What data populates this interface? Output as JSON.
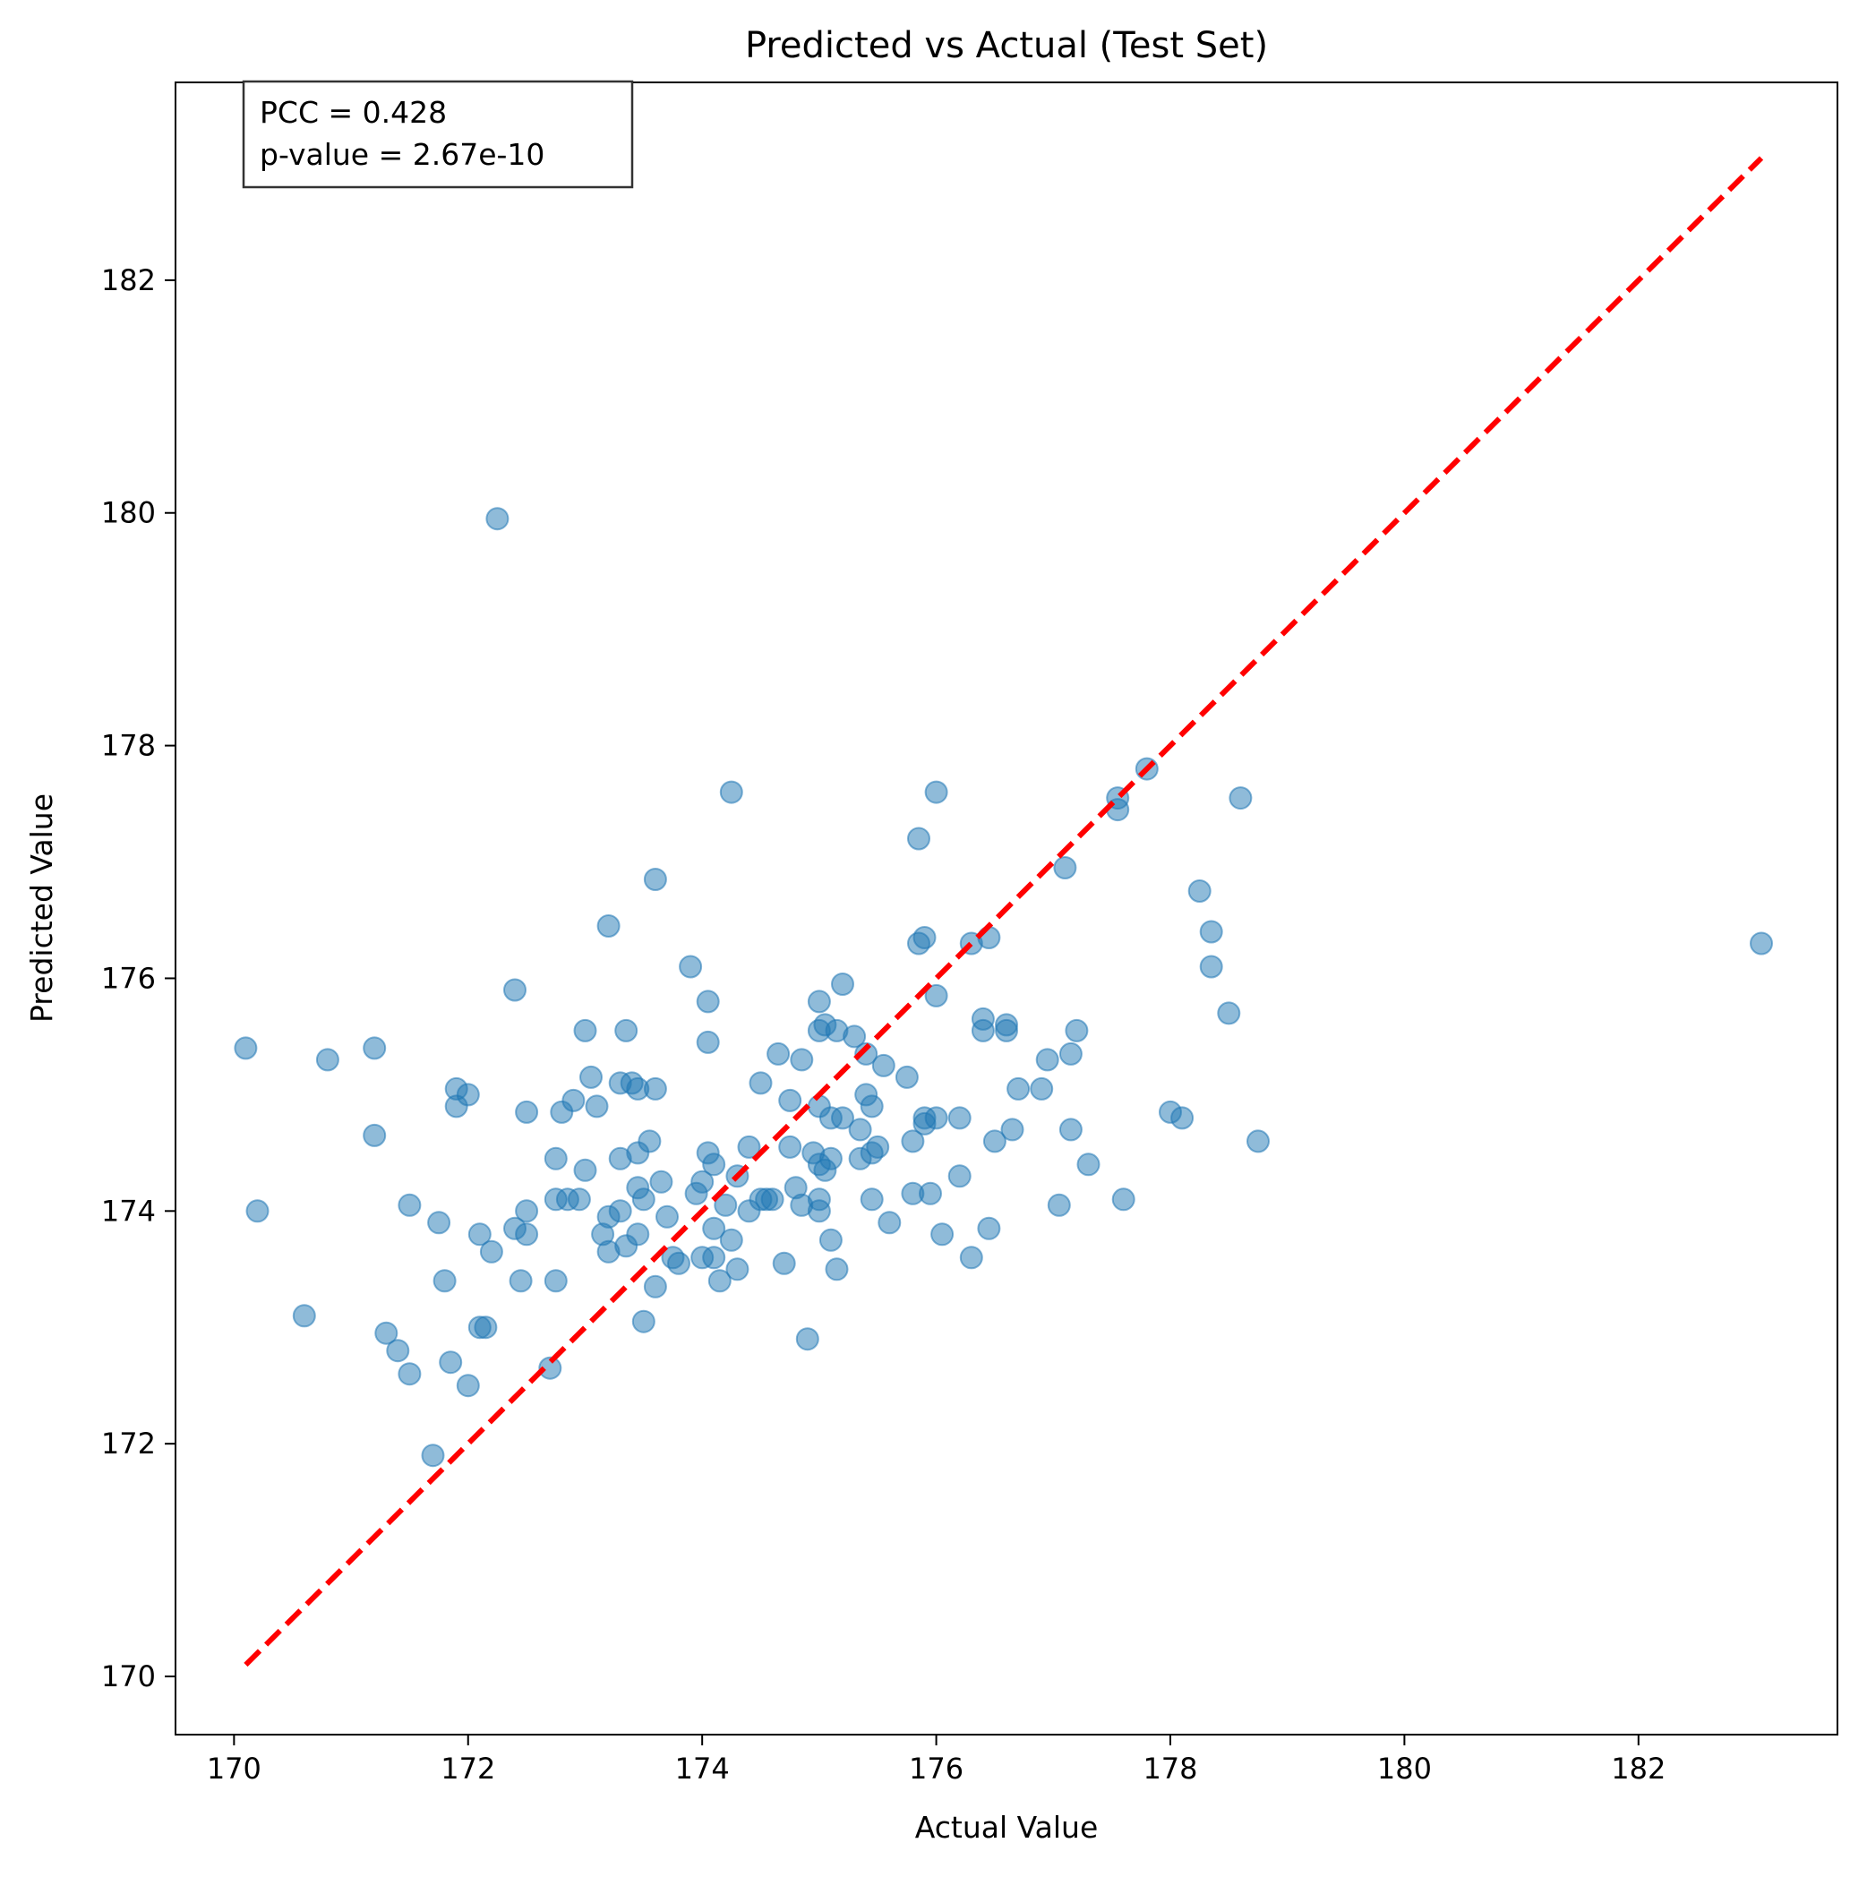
{
  "chart_data": {
    "type": "scatter",
    "title": "Predicted vs Actual (Test Set)",
    "xlabel": "Actual Value",
    "ylabel": "Predicted Value",
    "xlim": [
      169.5,
      183.7
    ],
    "ylim": [
      169.5,
      183.7
    ],
    "xticks": [
      "170",
      "172",
      "174",
      "176",
      "178",
      "180",
      "182"
    ],
    "yticks": [
      "170",
      "172",
      "174",
      "176",
      "178",
      "180",
      "182"
    ],
    "grid": false,
    "annotation": {
      "line1": "PCC = 0.428",
      "line2": "p-value = 2.67e-10"
    },
    "reference_line": {
      "style": "dashed",
      "color": "#ff0000",
      "x": [
        170.1,
        183.05
      ],
      "y": [
        170.1,
        183.05
      ]
    },
    "point_color": "#1f77b4",
    "point_opacity": 0.5,
    "x": [
      170.1,
      170.2,
      170.6,
      170.8,
      171.2,
      171.2,
      171.3,
      171.4,
      171.5,
      171.5,
      171.7,
      171.75,
      171.8,
      171.85,
      171.9,
      171.9,
      172.0,
      172.0,
      172.1,
      172.1,
      172.15,
      172.2,
      172.25,
      172.4,
      172.4,
      172.45,
      172.5,
      172.5,
      172.5,
      172.7,
      172.75,
      172.75,
      172.75,
      172.8,
      172.85,
      172.9,
      172.95,
      173.0,
      173.0,
      173.05,
      173.1,
      173.15,
      173.2,
      173.2,
      173.2,
      173.3,
      173.3,
      173.3,
      173.35,
      173.35,
      173.4,
      173.45,
      173.45,
      173.45,
      173.45,
      173.5,
      173.5,
      173.55,
      173.6,
      173.6,
      173.6,
      173.65,
      173.7,
      173.75,
      173.8,
      173.9,
      173.95,
      174.0,
      174.0,
      174.05,
      174.05,
      174.05,
      174.1,
      174.1,
      174.1,
      174.15,
      174.2,
      174.25,
      174.25,
      174.3,
      174.3,
      174.4,
      174.4,
      174.5,
      174.5,
      174.55,
      174.6,
      174.65,
      174.7,
      174.75,
      174.75,
      174.8,
      174.85,
      174.85,
      174.9,
      174.95,
      175.0,
      175.0,
      175.0,
      175.0,
      175.0,
      175.0,
      175.05,
      175.05,
      175.1,
      175.1,
      175.1,
      175.15,
      175.15,
      175.2,
      175.2,
      175.3,
      175.35,
      175.35,
      175.4,
      175.4,
      175.45,
      175.45,
      175.45,
      175.5,
      175.55,
      175.6,
      175.75,
      175.8,
      175.8,
      175.85,
      175.85,
      175.9,
      175.9,
      175.9,
      175.95,
      176.0,
      176.0,
      176.0,
      176.05,
      176.2,
      176.2,
      176.3,
      176.3,
      176.4,
      176.4,
      176.45,
      176.45,
      176.5,
      176.6,
      176.6,
      176.65,
      176.7,
      176.9,
      176.95,
      177.05,
      177.1,
      177.15,
      177.15,
      177.2,
      177.3,
      177.55,
      177.55,
      177.6,
      177.8,
      178.0,
      178.1,
      178.25,
      178.35,
      178.35,
      178.5,
      178.6,
      178.75,
      183.05
    ],
    "y": [
      175.4,
      174.0,
      173.1,
      175.3,
      175.4,
      174.65,
      172.95,
      172.8,
      174.05,
      172.6,
      171.9,
      173.9,
      173.4,
      172.7,
      175.05,
      174.9,
      175.0,
      172.5,
      173.8,
      173.0,
      173.0,
      173.65,
      179.95,
      175.9,
      173.85,
      173.4,
      174.0,
      173.8,
      174.85,
      172.65,
      174.45,
      174.1,
      173.4,
      174.85,
      174.1,
      174.95,
      174.1,
      175.55,
      174.35,
      175.15,
      174.9,
      173.8,
      176.45,
      173.95,
      173.65,
      175.1,
      174.45,
      174.0,
      173.7,
      175.55,
      175.1,
      175.05,
      174.5,
      174.2,
      173.8,
      174.1,
      173.05,
      174.6,
      173.35,
      176.85,
      175.05,
      174.25,
      173.95,
      173.6,
      173.55,
      176.1,
      174.15,
      174.25,
      173.6,
      175.8,
      175.45,
      174.5,
      174.4,
      173.85,
      173.6,
      173.4,
      174.05,
      177.6,
      173.75,
      174.3,
      173.5,
      174.55,
      174.0,
      175.1,
      174.1,
      174.1,
      174.1,
      175.35,
      173.55,
      174.95,
      174.55,
      174.2,
      175.3,
      174.05,
      172.9,
      174.5,
      175.8,
      175.55,
      174.9,
      174.1,
      174.0,
      174.4,
      175.6,
      174.35,
      174.8,
      174.45,
      173.75,
      175.55,
      173.5,
      175.95,
      174.8,
      175.5,
      174.7,
      174.45,
      175.35,
      175.0,
      174.9,
      174.5,
      174.1,
      174.55,
      175.25,
      173.9,
      175.15,
      174.6,
      174.15,
      177.2,
      176.3,
      174.8,
      174.75,
      176.35,
      174.15,
      174.8,
      177.6,
      175.85,
      173.8,
      174.8,
      174.3,
      176.3,
      173.6,
      175.65,
      175.55,
      176.35,
      173.85,
      174.6,
      175.6,
      175.55,
      174.7,
      175.05,
      175.05,
      175.3,
      174.05,
      176.95,
      175.35,
      174.7,
      175.55,
      174.4,
      177.55,
      177.45,
      174.1,
      177.8,
      174.85,
      174.8,
      176.75,
      176.4,
      176.1,
      175.7,
      177.55,
      174.6,
      176.3
    ]
  }
}
